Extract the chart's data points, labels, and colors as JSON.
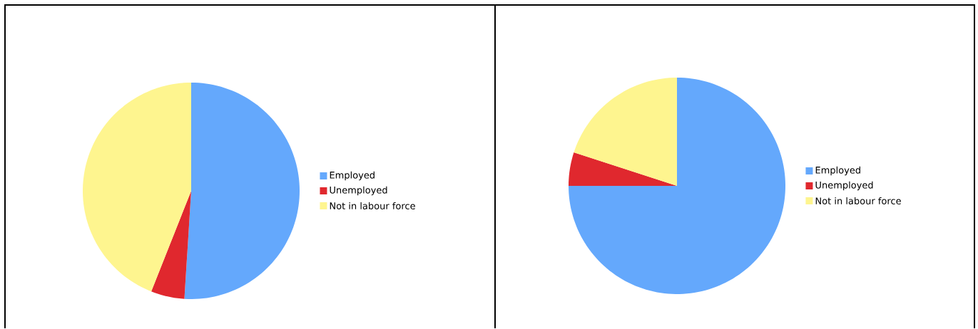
{
  "chart_data": [
    {
      "type": "pie",
      "categories": [
        "Employed",
        "Unemployed",
        "Not in labour force"
      ],
      "values": [
        51,
        5,
        44
      ],
      "colors": [
        "#64a8fc",
        "#e0282e",
        "#fef58f"
      ],
      "legend": "right"
    },
    {
      "type": "pie",
      "categories": [
        "Employed",
        "Unemployed",
        "Not in labour force"
      ],
      "values": [
        75,
        5,
        20
      ],
      "colors": [
        "#64a8fc",
        "#e0282e",
        "#fef58f"
      ],
      "legend": "right"
    }
  ]
}
